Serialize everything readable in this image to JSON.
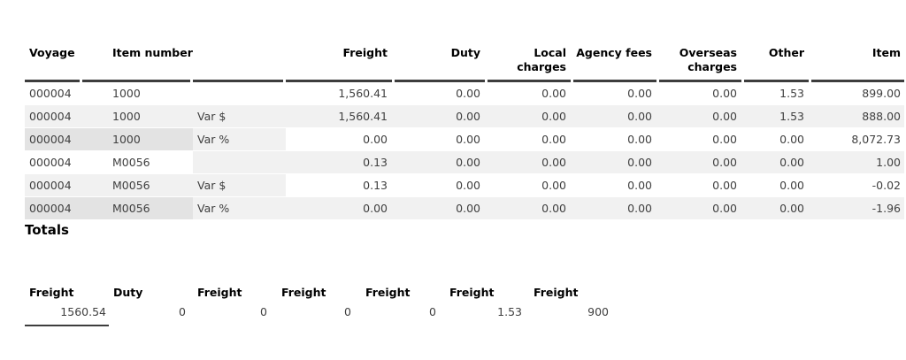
{
  "report": {
    "table": {
      "columns": [
        {
          "id": "voyage",
          "label": "Voyage"
        },
        {
          "id": "item-number",
          "label": "Item number"
        },
        {
          "id": "variance-type",
          "label": ""
        },
        {
          "id": "freight",
          "label": "Freight"
        },
        {
          "id": "duty",
          "label": "Duty"
        },
        {
          "id": "local-charges",
          "label": "Local\ncharges"
        },
        {
          "id": "agency-fees",
          "label": "Agency fees"
        },
        {
          "id": "overseas-charges",
          "label": "Overseas\ncharges"
        },
        {
          "id": "other",
          "label": "Other"
        },
        {
          "id": "item",
          "label": "Item"
        }
      ],
      "rows": [
        [
          "000004",
          "1000",
          "",
          "1,560.41",
          "0.00",
          "0.00",
          "0.00",
          "0.00",
          "1.53",
          "899.00"
        ],
        [
          "000004",
          "1000",
          "Var $",
          "1,560.41",
          "0.00",
          "0.00",
          "0.00",
          "0.00",
          "1.53",
          "888.00"
        ],
        [
          "000004",
          "1000",
          "Var %",
          "0.00",
          "0.00",
          "0.00",
          "0.00",
          "0.00",
          "0.00",
          "8,072.73"
        ],
        [
          "000004",
          "M0056",
          "",
          "0.13",
          "0.00",
          "0.00",
          "0.00",
          "0.00",
          "0.00",
          "1.00"
        ],
        [
          "000004",
          "M0056",
          "Var $",
          "0.13",
          "0.00",
          "0.00",
          "0.00",
          "0.00",
          "0.00",
          "-0.02"
        ],
        [
          "000004",
          "M0056",
          "Var %",
          "0.00",
          "0.00",
          "0.00",
          "0.00",
          "0.00",
          "0.00",
          "-1.96"
        ]
      ]
    },
    "totals": {
      "heading": "Totals",
      "columns": [
        "Freight",
        "Duty",
        "Freight",
        "Freight",
        "Freight",
        "Freight",
        "Freight"
      ],
      "values": [
        "1560.54",
        "0",
        "0",
        "0",
        "0",
        "1.53",
        "900"
      ]
    },
    "colors": {
      "stripe_light": "#f1f1f1",
      "stripe_dark": "#e3e3e3",
      "rule": "#3d3d3d",
      "header_text": "#000000",
      "body_text": "#404040"
    }
  }
}
